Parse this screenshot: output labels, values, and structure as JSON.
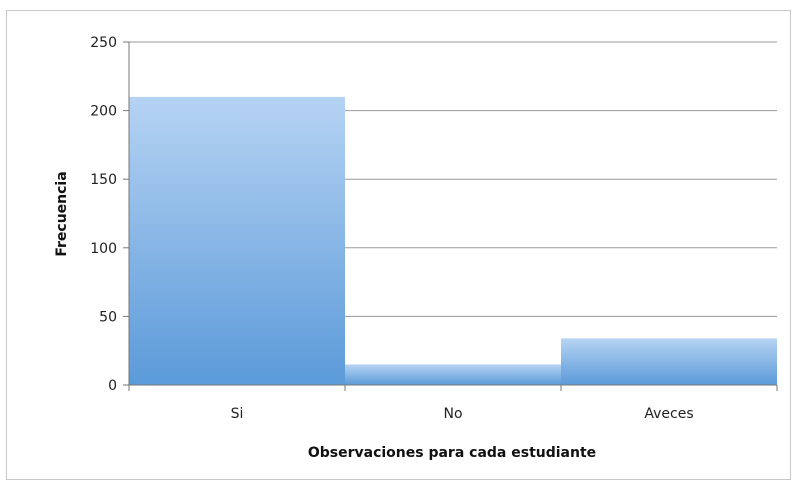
{
  "chart_data": {
    "type": "bar",
    "categories": [
      "Si",
      "No",
      "Aveces"
    ],
    "values": [
      210,
      15,
      34
    ],
    "xlabel": "Observaciones para cada estudiante",
    "ylabel": "Frecuencia",
    "ylim": [
      0,
      250
    ],
    "yticks": [
      "0",
      "50",
      "100",
      "150",
      "200",
      "250"
    ],
    "grid": true,
    "legend": "none",
    "bar_color_top": "#b6d3f3",
    "bar_color_bottom": "#5b9ad9",
    "grid_color": "#9a9a9a"
  }
}
